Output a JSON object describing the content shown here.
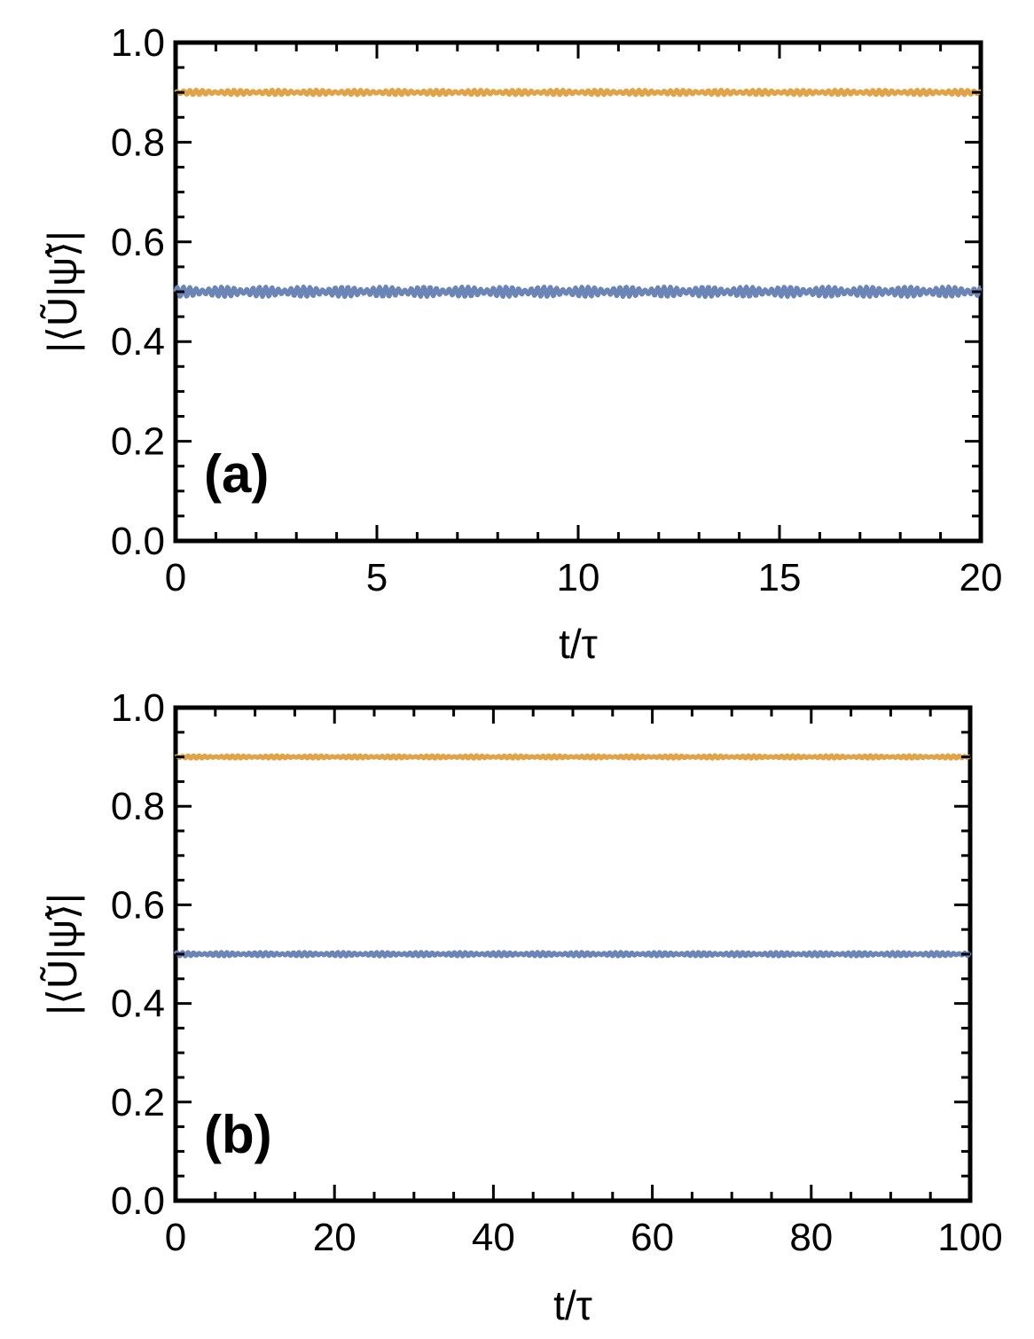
{
  "chart_data": [
    {
      "type": "line",
      "panel_label": "(a)",
      "xlabel": "t/τ",
      "ylabel": "|⟨Ũ|ψ̃⟩|",
      "xlim": [
        0,
        20
      ],
      "ylim": [
        0,
        1.0
      ],
      "x_ticks": [
        "0",
        "5",
        "10",
        "15",
        "20"
      ],
      "y_ticks": [
        "0.0",
        "0.2",
        "0.4",
        "0.6",
        "0.8",
        "1.0"
      ],
      "grid": false,
      "series": [
        {
          "color": "#e0a347",
          "baseline": 0.9,
          "oscillation_amplitude": 0.005,
          "x": [
            0,
            20
          ],
          "y": [
            0.9,
            0.9
          ]
        },
        {
          "color": "#6a85b6",
          "baseline": 0.5,
          "oscillation_amplitude": 0.01,
          "x": [
            0,
            20
          ],
          "y": [
            0.5,
            0.5
          ]
        }
      ]
    },
    {
      "type": "line",
      "panel_label": "(b)",
      "xlabel": "t/τ",
      "ylabel": "|⟨Ũ|ψ̃⟩|",
      "xlim": [
        0,
        100
      ],
      "ylim": [
        0,
        1.0
      ],
      "x_ticks": [
        "0",
        "20",
        "40",
        "60",
        "80",
        "100"
      ],
      "y_ticks": [
        "0.0",
        "0.2",
        "0.4",
        "0.6",
        "0.8",
        "1.0"
      ],
      "grid": false,
      "series": [
        {
          "color": "#e0a347",
          "baseline": 0.9,
          "oscillation_amplitude": 0.003,
          "x": [
            0,
            100
          ],
          "y": [
            0.9,
            0.9
          ]
        },
        {
          "color": "#6a85b6",
          "baseline": 0.5,
          "oscillation_amplitude": 0.004,
          "x": [
            0,
            100
          ],
          "y": [
            0.5,
            0.5
          ]
        }
      ]
    }
  ]
}
